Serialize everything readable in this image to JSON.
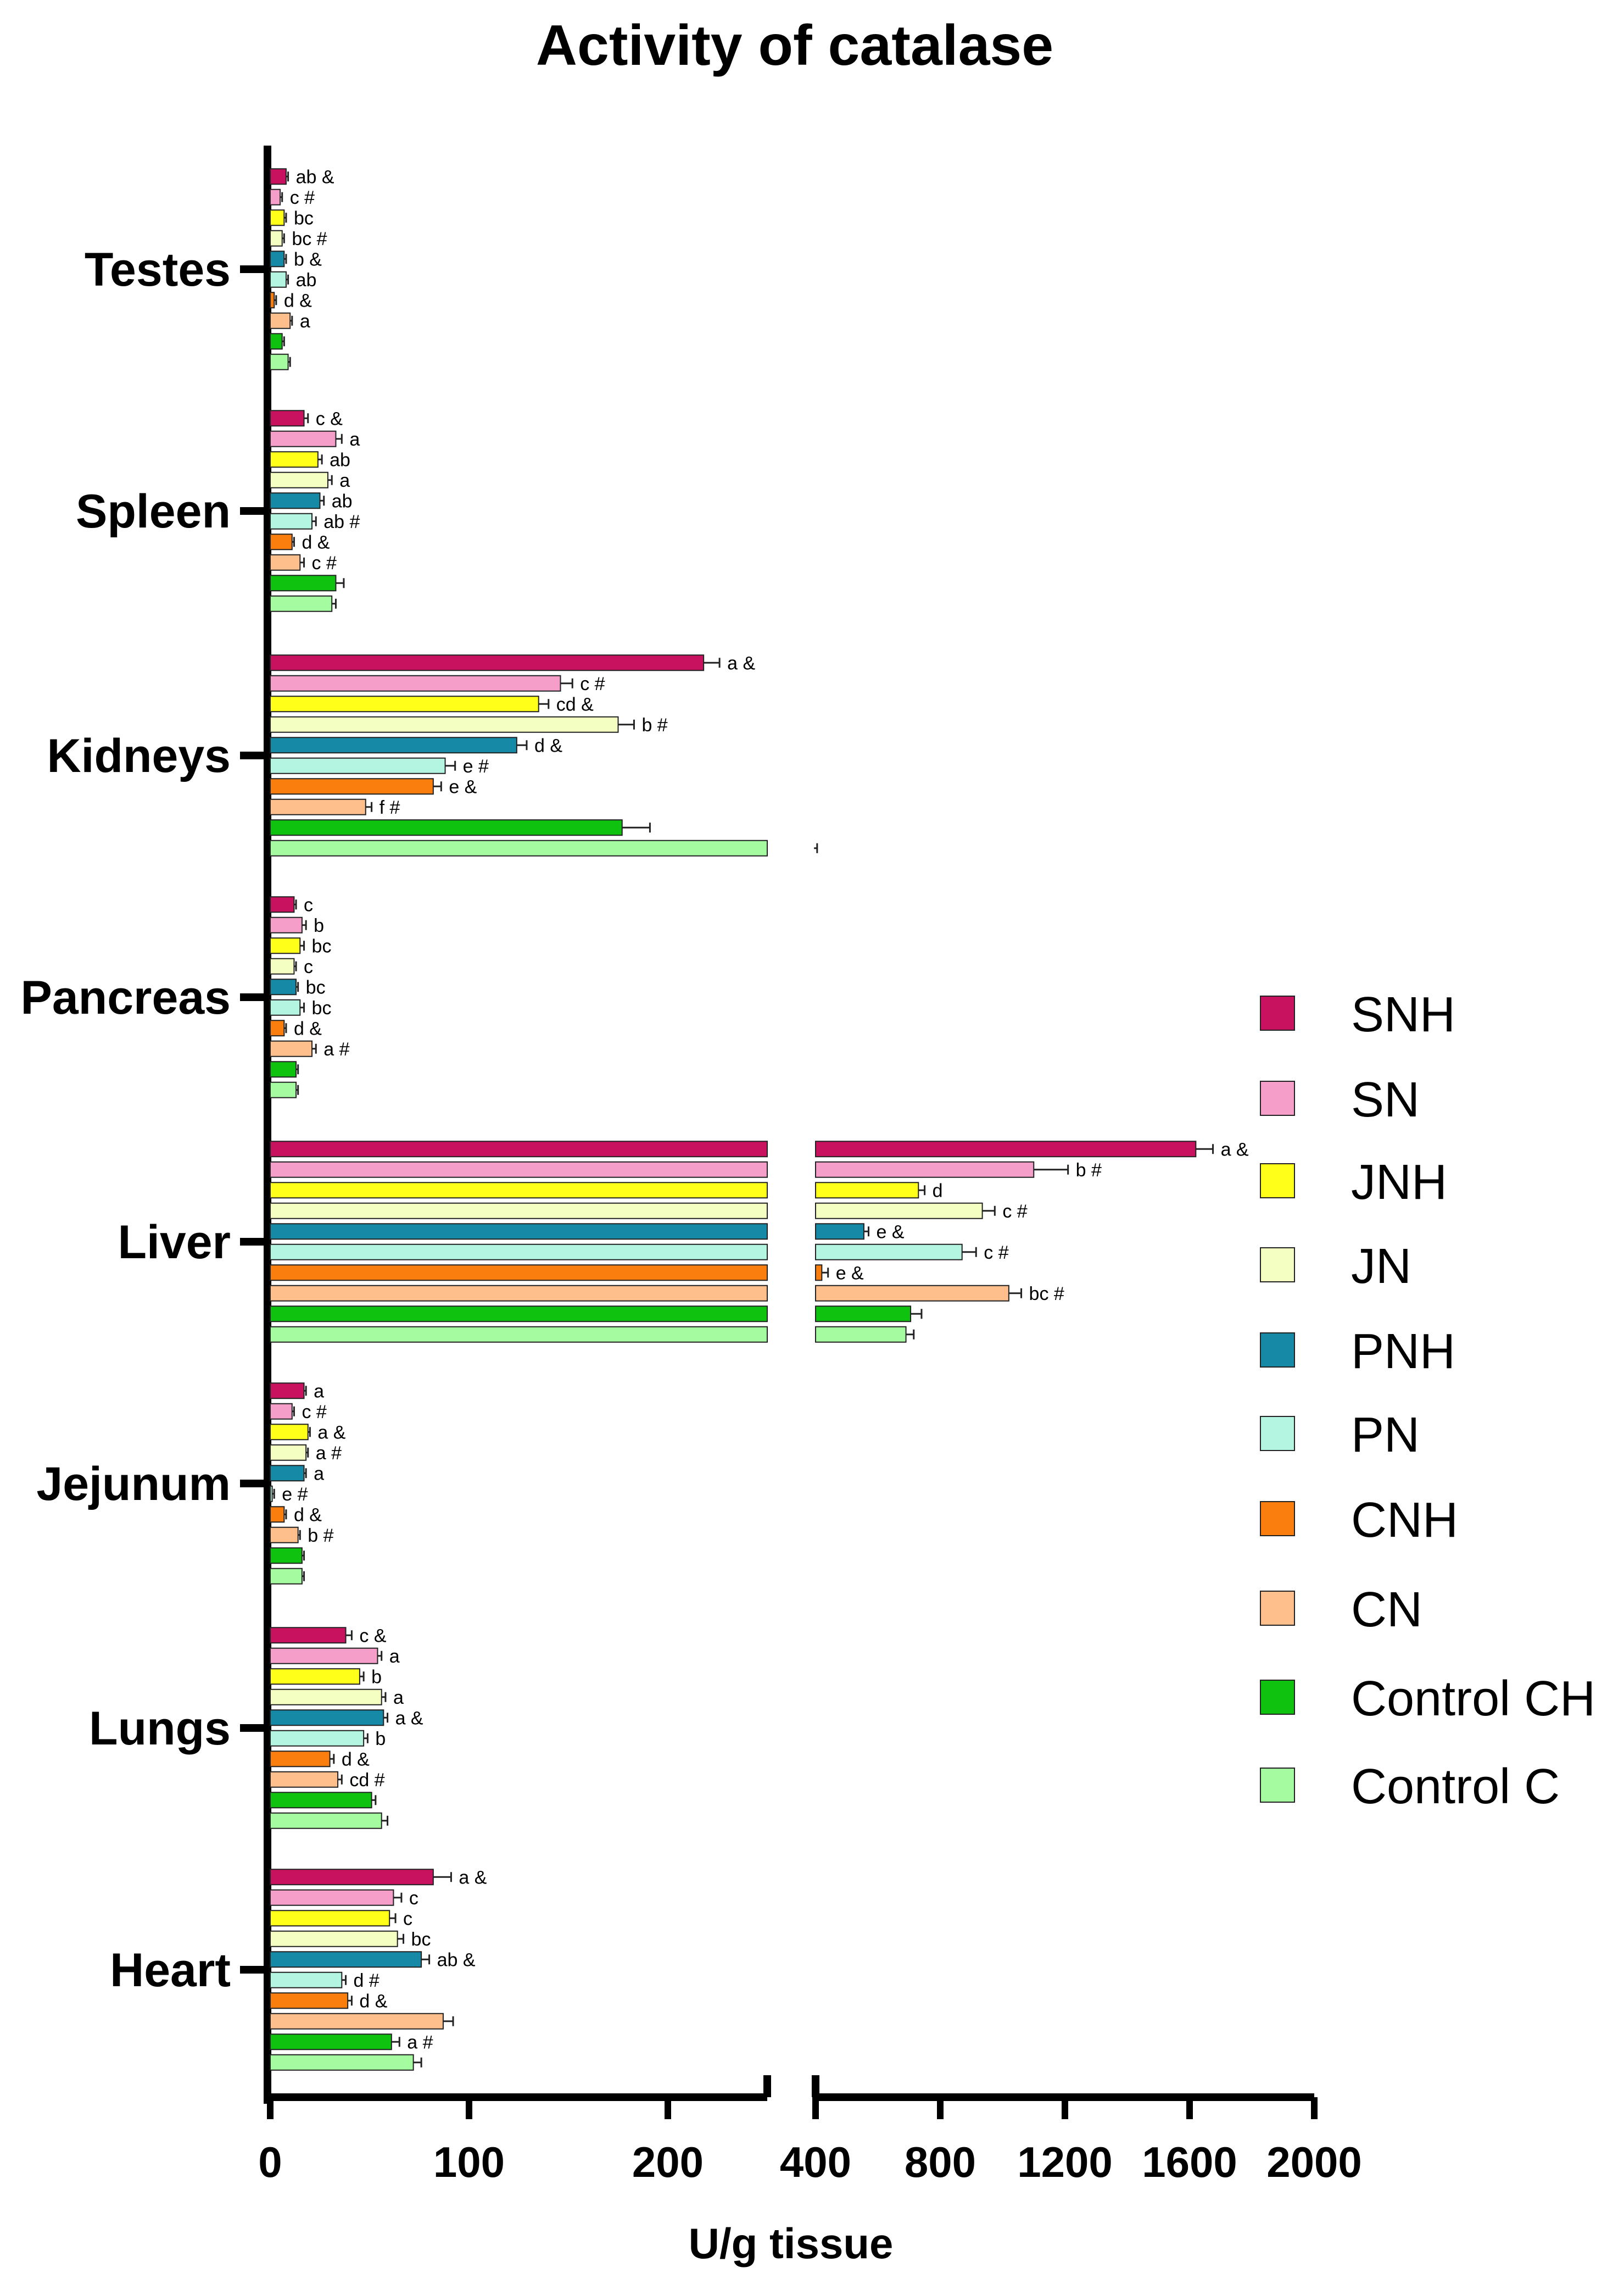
{
  "chart_data": {
    "type": "bar",
    "orientation": "horizontal",
    "title": "Activity of catalase",
    "xlabel": "U/g tissue",
    "ylabel": "",
    "x_axis_break": true,
    "x_ticks_left": [
      "0",
      "100",
      "200"
    ],
    "x_ticks_right": [
      "400",
      "800",
      "1200",
      "1600",
      "2000"
    ],
    "x_range_left": [
      0,
      250
    ],
    "x_range_right": [
      400,
      2000
    ],
    "grid": false,
    "legend_position": "right",
    "categories": [
      "Testes",
      "Spleen",
      "Kidneys",
      "Pancreas",
      "Liver",
      "Jejunum",
      "Lungs",
      "Heart"
    ],
    "series": [
      {
        "name": "SNH",
        "color": "#c8115f",
        "values": [
          8,
          17,
          218,
          12,
          1620,
          17,
          38,
          82
        ],
        "errors": [
          1,
          2,
          8,
          1,
          55,
          1,
          3,
          9
        ],
        "labels": [
          "ab &",
          "c &",
          "a &",
          "c",
          "a &",
          "a",
          "c &",
          "a &"
        ]
      },
      {
        "name": "SN",
        "color": "#f59ec9",
        "values": [
          5,
          33,
          146,
          16,
          1100,
          11,
          54,
          62
        ],
        "errors": [
          1,
          3,
          6,
          2,
          110,
          1,
          2,
          4
        ],
        "labels": [
          "c #",
          "a",
          "c #",
          "b",
          "b #",
          "c #",
          "a",
          "c"
        ]
      },
      {
        "name": "JNH",
        "color": "#ffff1a",
        "values": [
          7,
          24,
          135,
          15,
          730,
          19,
          45,
          60
        ],
        "errors": [
          1,
          2,
          5,
          2,
          20,
          1,
          2,
          3
        ],
        "labels": [
          "bc",
          "ab",
          "cd &",
          "bc",
          "d",
          "a &",
          "b",
          "c"
        ]
      },
      {
        "name": "JN",
        "color": "#f4ffc2",
        "values": [
          6,
          29,
          175,
          12,
          935,
          18,
          56,
          64
        ],
        "errors": [
          1,
          2,
          8,
          1,
          40,
          1,
          2,
          3
        ],
        "labels": [
          "bc #",
          "a",
          "b #",
          "c",
          "c #",
          "a #",
          "a",
          "bc"
        ]
      },
      {
        "name": "PNH",
        "color": "#1589a5",
        "values": [
          7,
          25,
          124,
          13,
          555,
          17,
          57,
          76
        ],
        "errors": [
          1,
          2,
          5,
          1,
          15,
          1,
          2,
          4
        ],
        "labels": [
          "b &",
          "ab",
          "d &",
          "bc",
          "e &",
          "a",
          "a &",
          "ab &"
        ]
      },
      {
        "name": "PN",
        "color": "#b3f5e1",
        "values": [
          8,
          21,
          88,
          15,
          870,
          1,
          47,
          36
        ],
        "errors": [
          1,
          2,
          5,
          2,
          45,
          1,
          2,
          2
        ],
        "labels": [
          "ab",
          "ab #",
          "e #",
          "bc",
          "c #",
          "e #",
          "b",
          "d #"
        ]
      },
      {
        "name": "CNH",
        "color": "#fa7e0e",
        "values": [
          2,
          11,
          82,
          7,
          420,
          7,
          30,
          39
        ],
        "errors": [
          1,
          1,
          4,
          1,
          20,
          1,
          2,
          2
        ],
        "labels": [
          "d &",
          "d &",
          "e &",
          "d &",
          "e &",
          "d &",
          "d &",
          "d &"
        ]
      },
      {
        "name": "CN",
        "color": "#ffbf8c",
        "values": [
          10,
          15,
          48,
          21,
          1020,
          14,
          34,
          87
        ],
        "errors": [
          1,
          2,
          3,
          2,
          40,
          1,
          2,
          5
        ],
        "labels": [
          "a",
          "c #",
          "f #",
          "a #",
          "bc #",
          "b #",
          "cd #",
          ""
        ]
      },
      {
        "name": "Control CH",
        "color": "#0fc20f",
        "values": [
          6,
          33,
          177,
          13,
          705,
          16,
          51,
          61
        ],
        "errors": [
          1,
          4,
          14,
          1,
          35,
          1,
          2,
          4
        ],
        "labels": [
          "",
          "",
          "",
          "",
          "",
          "",
          "",
          "a #"
        ]
      },
      {
        "name": "Control C",
        "color": "#a5fca0",
        "values": [
          9,
          31,
          395,
          13,
          690,
          16,
          56,
          72
        ],
        "errors": [
          1,
          2,
          10,
          1,
          25,
          1,
          3,
          4
        ],
        "labels": [
          "",
          "",
          "",
          "",
          "",
          "",
          "",
          ""
        ]
      }
    ]
  }
}
